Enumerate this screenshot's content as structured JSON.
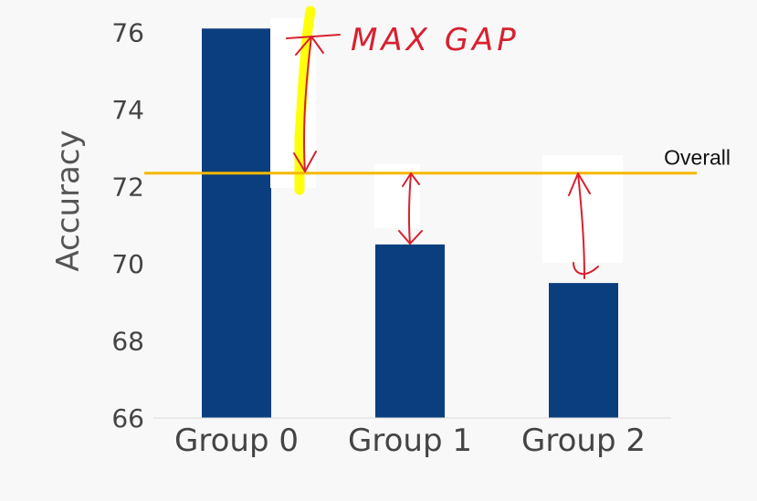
{
  "chart_data": {
    "type": "bar",
    "categories": [
      "Group 0",
      "Group 1",
      "Group 2"
    ],
    "values": [
      76.1,
      70.5,
      69.5
    ],
    "xlabel": "",
    "ylabel": "Accuracy",
    "ylim": [
      66,
      76.6
    ],
    "yticks": [
      66,
      68,
      70,
      72,
      74,
      76
    ],
    "grid": false,
    "bar_color": "#0b3e7e",
    "reference_line": {
      "label": "Overall",
      "value": 72.35,
      "color": "#f5b800"
    },
    "annotation": {
      "text": "MAX GAP",
      "color": "#d8202f",
      "highlight_color": "#ffff00"
    }
  }
}
